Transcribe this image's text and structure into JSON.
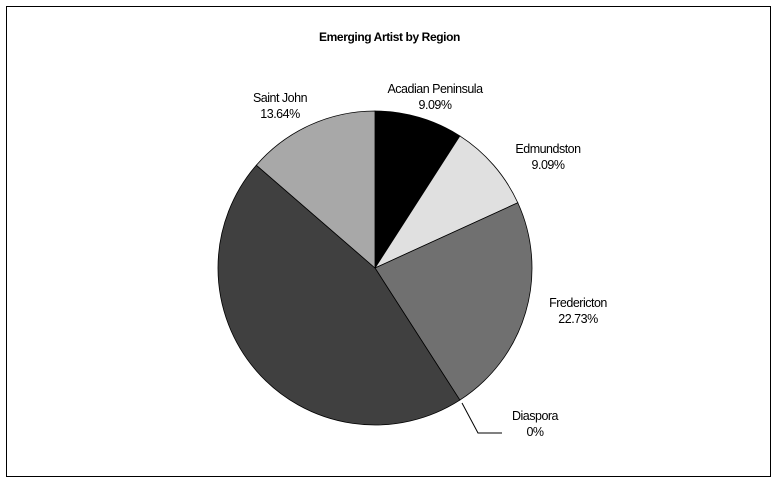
{
  "chart_data": {
    "type": "pie",
    "title": "Emerging Artist by Region",
    "slices": [
      {
        "name": "Acadian Peninsula",
        "value": 9.09,
        "value_label": "9.09%",
        "color": "#000000"
      },
      {
        "name": "Edmundston",
        "value": 9.09,
        "value_label": "9.09%",
        "color": "#e0e0e0"
      },
      {
        "name": "Fredericton",
        "value": 22.73,
        "value_label": "22.73%",
        "color": "#707070"
      },
      {
        "name": "Diaspora",
        "value": 0,
        "value_label": "0%",
        "color": "#000000"
      },
      {
        "name": "",
        "value": 45.45,
        "value_label": "",
        "color": "#404040"
      },
      {
        "name": "Saint John",
        "value": 13.64,
        "value_label": "13.64%",
        "color": "#a8a8a8"
      }
    ],
    "start_angle_deg": 0,
    "direction": "clockwise",
    "legend": "none"
  }
}
